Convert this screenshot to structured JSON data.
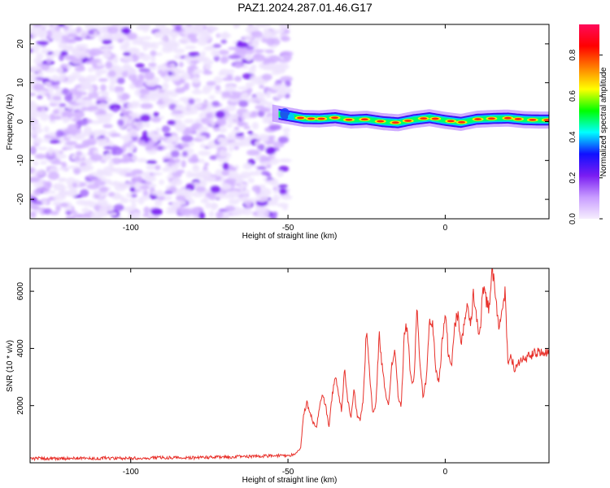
{
  "title": "PAZ1.2024.287.01.46.G17",
  "chart_data": [
    {
      "type": "heatmap",
      "xlabel": "Height of straight line (km)",
      "ylabel": "Frequency (Hz)",
      "xlim": [
        -132,
        33
      ],
      "ylim": [
        -25,
        25
      ],
      "xticks": [
        -100,
        -50,
        0
      ],
      "yticks": [
        -20,
        -10,
        0,
        10,
        20
      ],
      "noise_region": {
        "x_from": -132,
        "x_to": -50,
        "freq_from": -25,
        "freq_to": 25
      },
      "signal_ridge": {
        "x": [
          -55,
          -50,
          -45,
          -40,
          -35,
          -30,
          -25,
          -20,
          -15,
          -10,
          -5,
          0,
          5,
          10,
          15,
          20,
          25,
          30,
          33
        ],
        "frequency": [
          2.2,
          1.5,
          0.8,
          0.7,
          1.0,
          0.4,
          0.6,
          0.0,
          -0.3,
          0.5,
          1.0,
          0.3,
          -0.2,
          0.6,
          0.8,
          0.9,
          0.5,
          0.4,
          0.4
        ]
      },
      "colorbar": {
        "label": "Normalized spectral amplitude",
        "range": [
          0,
          0.95
        ],
        "ticks": [
          "0.0",
          "0.2",
          "0.4",
          "0.6",
          "0.8"
        ],
        "colors": [
          "#f6eefe",
          "#c89cff",
          "#7a1cf2",
          "#1010ff",
          "#00ffff",
          "#00ff00",
          "#ffff00",
          "#ff7f00",
          "#ff0000",
          "#ff0a5a"
        ]
      }
    },
    {
      "type": "line",
      "xlabel": "Height of straight line (km)",
      "ylabel": "SNR (10 * v/v)",
      "xlim": [
        -132,
        33
      ],
      "ylim": [
        0,
        6800
      ],
      "xticks": [
        -100,
        -50,
        0
      ],
      "yticks": [
        2000,
        4000,
        6000
      ],
      "color": "#e8302a",
      "series": [
        {
          "x": [
            -132,
            -120,
            -110,
            -100,
            -90,
            -80,
            -70,
            -60,
            -52,
            -48,
            -46,
            -45,
            -44,
            -43,
            -42,
            -41,
            -40,
            -39,
            -38,
            -37,
            -36,
            -35,
            -34,
            -33,
            -32,
            -31,
            -30,
            -29,
            -28,
            -27,
            -26,
            -25,
            -24,
            -23,
            -22,
            -21,
            -20,
            -19,
            -18,
            -17,
            -16,
            -15,
            -14,
            -13,
            -12,
            -11,
            -10,
            -9,
            -8,
            -7,
            -6,
            -5,
            -4,
            -3,
            -2,
            -1,
            0,
            1,
            2,
            3,
            4,
            5,
            6,
            7,
            8,
            9,
            10,
            11,
            12,
            13,
            14,
            15,
            16,
            17,
            18,
            19,
            20,
            21,
            22,
            24,
            26,
            28,
            30,
            33
          ],
          "y": [
            150,
            150,
            160,
            160,
            180,
            180,
            200,
            230,
            250,
            280,
            500,
            1700,
            2100,
            1800,
            1400,
            1200,
            1900,
            2400,
            2000,
            1250,
            2300,
            3000,
            2500,
            1850,
            3200,
            2200,
            1600,
            2500,
            1650,
            1500,
            2300,
            4800,
            3000,
            1700,
            2100,
            4500,
            3300,
            2500,
            2000,
            3500,
            4000,
            2400,
            1900,
            4600,
            4800,
            3000,
            2800,
            5400,
            3500,
            2200,
            3000,
            5000,
            4800,
            3300,
            2800,
            4200,
            5400,
            3800,
            3300,
            4800,
            5200,
            4100,
            4800,
            5500,
            4800,
            5900,
            5000,
            4500,
            6100,
            5700,
            5400,
            6800,
            5800,
            4600,
            5400,
            6000,
            3400,
            3700,
            3300,
            3600,
            3700,
            3800,
            3900,
            3800
          ]
        }
      ]
    }
  ]
}
